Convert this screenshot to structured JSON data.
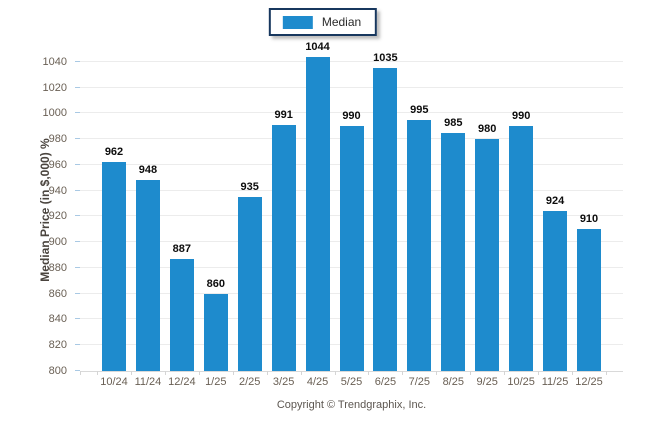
{
  "legend": {
    "label": "Median"
  },
  "y_axis": {
    "title": "Median Price (in $,000) %"
  },
  "footer": {
    "copyright": "Copyright © Trendgraphix, Inc."
  },
  "colors": {
    "bar": "#1e8bcd",
    "legend_border": "#17375e",
    "gridline": "#ececec",
    "axis_line": "#d9d9d9",
    "y_left_tick": "#a9c9e4",
    "tick_label": "#6a6055",
    "value_label": "#0d0d0d"
  },
  "chart_data": {
    "type": "bar",
    "title": "",
    "categories": [
      "10/24",
      "11/24",
      "12/24",
      "1/25",
      "2/25",
      "3/25",
      "4/25",
      "5/25",
      "6/25",
      "7/25",
      "8/25",
      "9/25",
      "10/25",
      "11/25",
      "12/25"
    ],
    "values": [
      962,
      948,
      887,
      860,
      935,
      991,
      1044,
      990,
      1035,
      995,
      985,
      980,
      990,
      924,
      910
    ],
    "series": [
      {
        "name": "Median",
        "values": [
          962,
          948,
          887,
          860,
          935,
          991,
          1044,
          990,
          1035,
          995,
          985,
          980,
          990,
          924,
          910
        ]
      }
    ],
    "xlabel": "",
    "ylabel": "Median Price (in $,000) %",
    "ylim": [
      800,
      1050
    ],
    "yticks": [
      800,
      820,
      840,
      860,
      880,
      900,
      920,
      940,
      960,
      980,
      1000,
      1020,
      1040
    ],
    "grid": true,
    "legend_position": "top-center",
    "bar_color": "#1e8bcd",
    "value_labels_shown": true
  }
}
